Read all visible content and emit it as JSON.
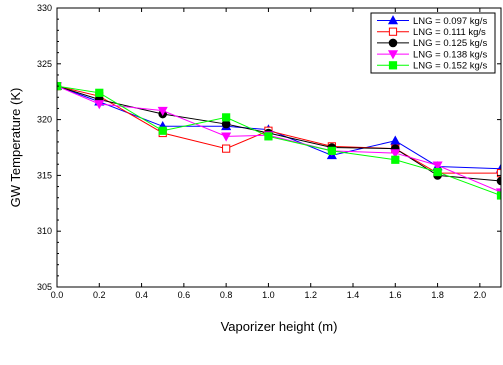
{
  "chart_data": {
    "type": "line",
    "title": "",
    "xlabel": "Vaporizer height (m)",
    "ylabel": "GW Temperature (K)",
    "xlim": [
      0.0,
      2.1
    ],
    "ylim": [
      305,
      330
    ],
    "xticks": [
      "0.0",
      "0.2",
      "0.4",
      "0.6",
      "0.8",
      "1.0",
      "1.2",
      "1.4",
      "1.6",
      "1.8",
      "2.0"
    ],
    "yticks": [
      "305",
      "310",
      "315",
      "320",
      "325",
      "330"
    ],
    "grid": false,
    "legend_position": "top-right",
    "series": [
      {
        "name": "LNG = 0.097 kg/s",
        "color": "#0000ff",
        "marker": "triangle-up",
        "filled": true,
        "x": [
          0.0,
          0.2,
          0.5,
          0.8,
          1.0,
          1.3,
          1.6,
          1.8,
          2.1
        ],
        "y": [
          323.0,
          321.6,
          319.4,
          319.4,
          319.1,
          316.8,
          318.1,
          315.8,
          315.6
        ]
      },
      {
        "name": "LNG = 0.111 kg/s",
        "color": "#ff0000",
        "marker": "square",
        "filled": false,
        "x": [
          0.0,
          0.2,
          0.5,
          0.8,
          1.0,
          1.3,
          1.6,
          1.8,
          2.1
        ],
        "y": [
          323.0,
          322.1,
          318.8,
          317.4,
          319.0,
          317.6,
          317.4,
          315.2,
          315.2
        ]
      },
      {
        "name": "LNG = 0.125 kg/s",
        "color": "#000000",
        "marker": "circle",
        "filled": true,
        "x": [
          0.0,
          0.2,
          0.5,
          0.8,
          1.0,
          1.3,
          1.6,
          1.8,
          2.1
        ],
        "y": [
          323.0,
          321.8,
          320.5,
          319.6,
          318.8,
          317.5,
          317.4,
          315.0,
          314.5
        ]
      },
      {
        "name": "LNG = 0.138 kg/s",
        "color": "#ff00ff",
        "marker": "triangle-down",
        "filled": true,
        "x": [
          0.0,
          0.2,
          0.5,
          0.8,
          1.0,
          1.3,
          1.6,
          1.8,
          2.1
        ],
        "y": [
          323.0,
          321.4,
          320.8,
          318.5,
          318.6,
          317.2,
          317.0,
          315.9,
          313.5
        ]
      },
      {
        "name": "LNG = 0.152 kg/s",
        "color": "#00ff00",
        "marker": "square",
        "filled": true,
        "x": [
          0.0,
          0.2,
          0.5,
          0.8,
          1.0,
          1.3,
          1.6,
          1.8,
          2.1
        ],
        "y": [
          323.0,
          322.4,
          319.0,
          320.2,
          318.5,
          317.2,
          316.4,
          315.3,
          313.2
        ]
      }
    ]
  }
}
